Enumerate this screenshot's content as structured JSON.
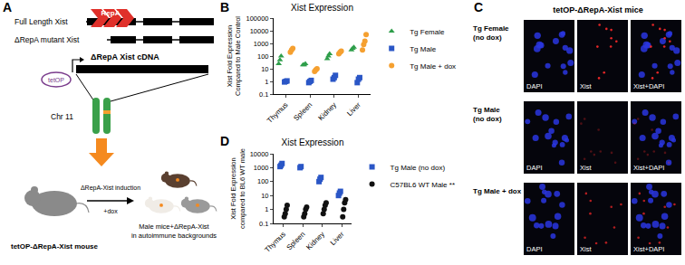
{
  "panel_labels": [
    "A",
    "B",
    "C",
    "D"
  ],
  "diagram": {
    "full_length": "Full Length Xist",
    "repa": "RepA",
    "mutant": "ΔRepA mutant Xist",
    "cdna": "ΔRepA Xist cDNA",
    "promoter": "tetOP",
    "chromosome": "Chr 11",
    "mouse": "tetOP-ΔRepA-Xist mouse",
    "induction": "ΔRepA-Xist induction",
    "dox": "+dox",
    "result": [
      "Male mice+ΔRepA-Xist",
      "in autoimmune backgrounds"
    ]
  },
  "images": {
    "title": "tetOP-ΔRepA-Xist mice",
    "columns": [
      "DAPI",
      "Xist",
      "Xist+DAPI"
    ],
    "rows": [
      {
        "label": [
          "Tg Female",
          "(no dox)"
        ]
      },
      {
        "label": [
          "Tg Male",
          "(no dox)"
        ]
      },
      {
        "label": [
          "Tg Male + dox"
        ]
      }
    ]
  },
  "chart_data": [
    {
      "type": "scatter",
      "title": "Xist Expression",
      "ylabel": "Xist Fold Expression\nCompared to Male Control",
      "categories": [
        "Thymus",
        "Spleen",
        "Kidney",
        "Liver"
      ],
      "series": [
        {
          "name": "Tg Female",
          "color": "#2e9e4a",
          "marker": "triangle-up",
          "values": [
            [
              25,
              50,
              100
            ],
            [
              20,
              20,
              25
            ],
            [
              60,
              100,
              150
            ],
            [
              300,
              400,
              500
            ]
          ]
        },
        {
          "name": "Tg Male",
          "color": "#2a56c6",
          "marker": "square",
          "values": [
            [
              0.9,
              1,
              1.1
            ],
            [
              0.8,
              1,
              1.2
            ],
            [
              1.5,
              2,
              3
            ],
            [
              0.8,
              1.5,
              2
            ]
          ]
        },
        {
          "name": "Tg Male + dox",
          "color": "#f5a030",
          "marker": "circle",
          "values": [
            [
              200,
              300,
              400
            ],
            [
              6,
              8,
              10
            ],
            [
              150,
              200,
              250
            ],
            [
              300,
              800,
              1500,
              5000
            ]
          ]
        }
      ],
      "log": "y",
      "ylim": [
        0.1,
        100000
      ],
      "yticks": [
        0.1,
        1,
        10,
        100,
        1000,
        10000,
        100000
      ],
      "grid": false,
      "legend": "right"
    },
    {
      "type": "scatter",
      "title": "Xist Expression",
      "ylabel": "Xist Fold Expression\ncompared to BL6 WT male",
      "categories": [
        "Thymus",
        "Spleen",
        "Kidney",
        "Liver"
      ],
      "series": [
        {
          "name": "Tg Male (no dox)",
          "color": "#2a56c6",
          "marker": "square",
          "values": [
            [
              1200,
              1500,
              2000
            ],
            [
              1000,
              1200
            ],
            [
              100,
              150,
              200
            ],
            [
              10,
              15,
              20
            ]
          ]
        },
        {
          "name": "C57BL6 WT Male **",
          "color": "#111111",
          "marker": "circle",
          "values": [
            [
              0.3,
              0.5,
              1,
              2
            ],
            [
              0.3,
              0.5,
              1,
              1.5
            ],
            [
              0.5,
              1,
              2,
              3
            ],
            [
              0.3,
              1,
              3,
              5
            ]
          ]
        }
      ],
      "log": "y",
      "ylim": [
        0.1,
        10000
      ],
      "yticks": [
        0.1,
        1,
        10,
        100,
        1000,
        10000
      ],
      "grid": false,
      "legend": "right"
    }
  ]
}
